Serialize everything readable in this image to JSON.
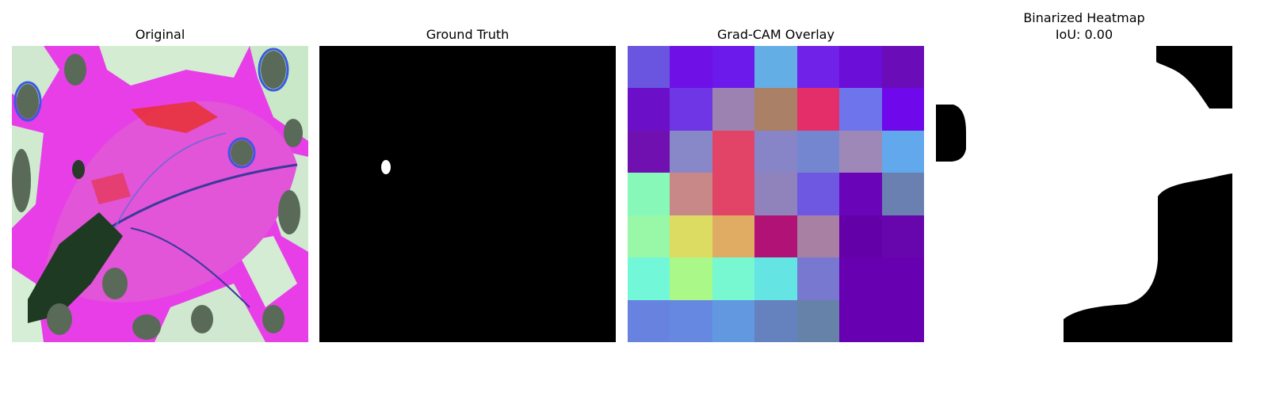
{
  "panels": {
    "original": {
      "title": "Original"
    },
    "ground_truth": {
      "title": "Ground Truth"
    },
    "gradcam": {
      "title": "Grad-CAM Overlay",
      "grid": [
        [
          "#6a55e0",
          "#6e10e6",
          "#6c1aec",
          "#64aee6",
          "#7022e8",
          "#6a0ed8",
          "#6a0cb8"
        ],
        [
          "#6b10c8",
          "#6e36e4",
          "#9c82b0",
          "#aa8066",
          "#e42e6a",
          "#6e74ec",
          "#7008ec"
        ],
        [
          "#7010b0",
          "#8888c8",
          "#e24468",
          "#8884c8",
          "#7486d0",
          "#9e88b8",
          "#62a8ec"
        ],
        [
          "#88f8b8",
          "#c88888",
          "#e24468",
          "#9082ba",
          "#6e58e2",
          "#6a04b8",
          "#6a80b0"
        ],
        [
          "#98f8a8",
          "#dcdc62",
          "#e0ac64",
          "#b01276",
          "#a880a4",
          "#6400a8",
          "#6606ac"
        ],
        [
          "#72f8d8",
          "#aaf888",
          "#78f8d0",
          "#64e4e2",
          "#7878d0",
          "#6600b0",
          "#6600b0"
        ],
        [
          "#6882e0",
          "#6688e0",
          "#6298e0",
          "#6682be",
          "#6682a8",
          "#6600b0",
          "#6600b0"
        ]
      ]
    },
    "binarized": {
      "title_line1": "Binarized Heatmap",
      "title_line2": "IoU: 0.00"
    }
  }
}
